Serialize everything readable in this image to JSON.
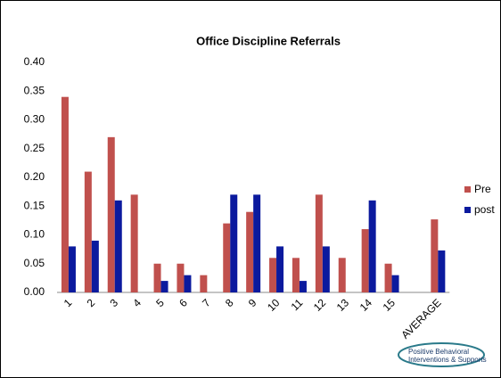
{
  "chart_data": {
    "type": "bar",
    "title": "Office Discipline Referrals",
    "categories": [
      "1",
      "2",
      "3",
      "4",
      "5",
      "6",
      "7",
      "8",
      "9",
      "10",
      "11",
      "12",
      "13",
      "14",
      "15",
      null,
      "AVERAGE"
    ],
    "series": [
      {
        "name": "Pre",
        "color": "#c0504d",
        "values": [
          0.34,
          0.21,
          0.27,
          0.17,
          0.05,
          0.05,
          0.03,
          0.12,
          0.14,
          0.06,
          0.06,
          0.17,
          0.06,
          0.11,
          0.05,
          null,
          0.127
        ]
      },
      {
        "name": "post",
        "color": "#0b1a9e",
        "values": [
          0.08,
          0.09,
          0.16,
          0,
          0.02,
          0.03,
          0,
          0.17,
          0.17,
          0.08,
          0.02,
          0.08,
          0,
          0.16,
          0.03,
          null,
          0.073
        ]
      }
    ],
    "ylim": [
      0,
      0.4
    ],
    "yticks": [
      {
        "value": 0,
        "label": "0.00"
      },
      0.05,
      {
        "value": 0.1,
        "label": "0.10"
      },
      0.15,
      {
        "value": 0.2,
        "label": "0.20"
      },
      0.25,
      {
        "value": 0.3,
        "label": "0.30"
      },
      0.35,
      {
        "value": 0.4,
        "label": "0.40"
      }
    ],
    "legend": "right",
    "logo": {
      "line1": "Positive Behavioral",
      "line2": "Interventions & Supports"
    }
  }
}
